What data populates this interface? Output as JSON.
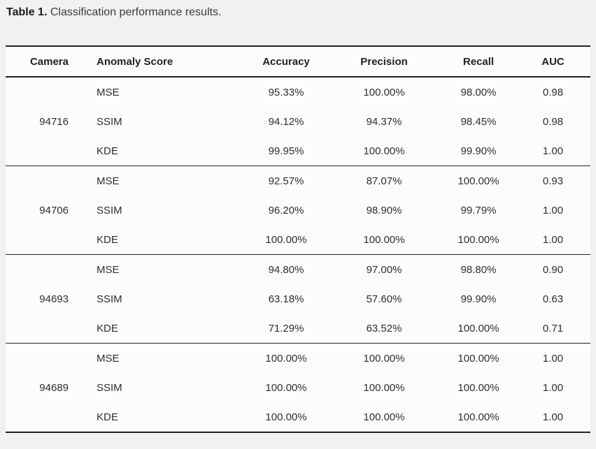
{
  "caption": {
    "label": "Table 1.",
    "text": "Classification performance results."
  },
  "table": {
    "headers": [
      "Camera",
      "Anomaly Score",
      "Accuracy",
      "Precision",
      "Recall",
      "AUC"
    ],
    "groups": [
      {
        "camera": "94716",
        "rows": [
          {
            "score": "MSE",
            "accuracy": "95.33%",
            "precision": "100.00%",
            "recall": "98.00%",
            "auc": "0.98"
          },
          {
            "score": "SSIM",
            "accuracy": "94.12%",
            "precision": "94.37%",
            "recall": "98.45%",
            "auc": "0.98"
          },
          {
            "score": "KDE",
            "accuracy": "99.95%",
            "precision": "100.00%",
            "recall": "99.90%",
            "auc": "1.00"
          }
        ]
      },
      {
        "camera": "94706",
        "rows": [
          {
            "score": "MSE",
            "accuracy": "92.57%",
            "precision": "87.07%",
            "recall": "100.00%",
            "auc": "0.93"
          },
          {
            "score": "SSIM",
            "accuracy": "96.20%",
            "precision": "98.90%",
            "recall": "99.79%",
            "auc": "1.00"
          },
          {
            "score": "KDE",
            "accuracy": "100.00%",
            "precision": "100.00%",
            "recall": "100.00%",
            "auc": "1.00"
          }
        ]
      },
      {
        "camera": "94693",
        "rows": [
          {
            "score": "MSE",
            "accuracy": "94.80%",
            "precision": "97.00%",
            "recall": "98.80%",
            "auc": "0.90"
          },
          {
            "score": "SSIM",
            "accuracy": "63.18%",
            "precision": "57.60%",
            "recall": "99.90%",
            "auc": "0.63"
          },
          {
            "score": "KDE",
            "accuracy": "71.29%",
            "precision": "63.52%",
            "recall": "100.00%",
            "auc": "0.71"
          }
        ]
      },
      {
        "camera": "94689",
        "rows": [
          {
            "score": "MSE",
            "accuracy": "100.00%",
            "precision": "100.00%",
            "recall": "100.00%",
            "auc": "1.00"
          },
          {
            "score": "SSIM",
            "accuracy": "100.00%",
            "precision": "100.00%",
            "recall": "100.00%",
            "auc": "1.00"
          },
          {
            "score": "KDE",
            "accuracy": "100.00%",
            "precision": "100.00%",
            "recall": "100.00%",
            "auc": "1.00"
          }
        ]
      }
    ]
  },
  "colors": {
    "page_background": "#f1f1f2",
    "table_background": "#fcfcfc",
    "border": "#212121",
    "text": "#2e2e2e"
  }
}
